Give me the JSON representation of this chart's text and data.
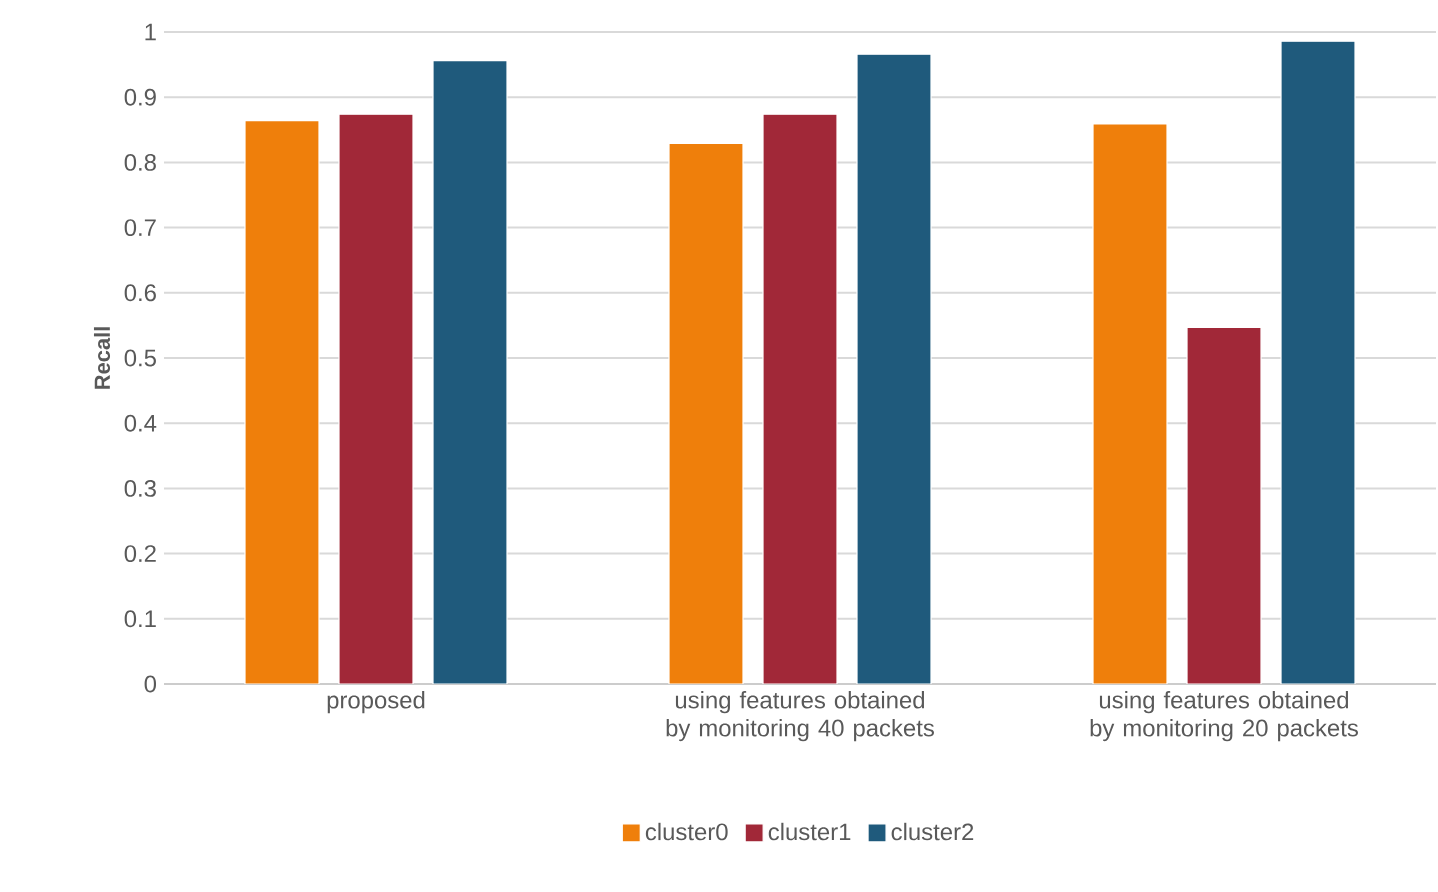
{
  "chart_data": {
    "type": "bar",
    "ylabel": "Recall",
    "categories": [
      "proposed",
      "using features obtained by monitoring 40 packets",
      "using features obtained by monitoring 20 packets"
    ],
    "series": [
      {
        "name": "cluster0",
        "color": "#ef7f0b",
        "values": [
          0.864,
          0.829,
          0.859
        ]
      },
      {
        "name": "cluster1",
        "color": "#a12838",
        "values": [
          0.874,
          0.874,
          0.547
        ]
      },
      {
        "name": "cluster2",
        "color": "#1f5a7c",
        "values": [
          0.956,
          0.966,
          0.986
        ]
      }
    ],
    "ylim": [
      0,
      1
    ],
    "yticks": [
      0,
      0.1,
      0.2,
      0.3,
      0.4,
      0.5,
      0.6,
      0.7,
      0.8,
      0.9,
      1
    ],
    "grid": "y",
    "legend": "bottom"
  }
}
